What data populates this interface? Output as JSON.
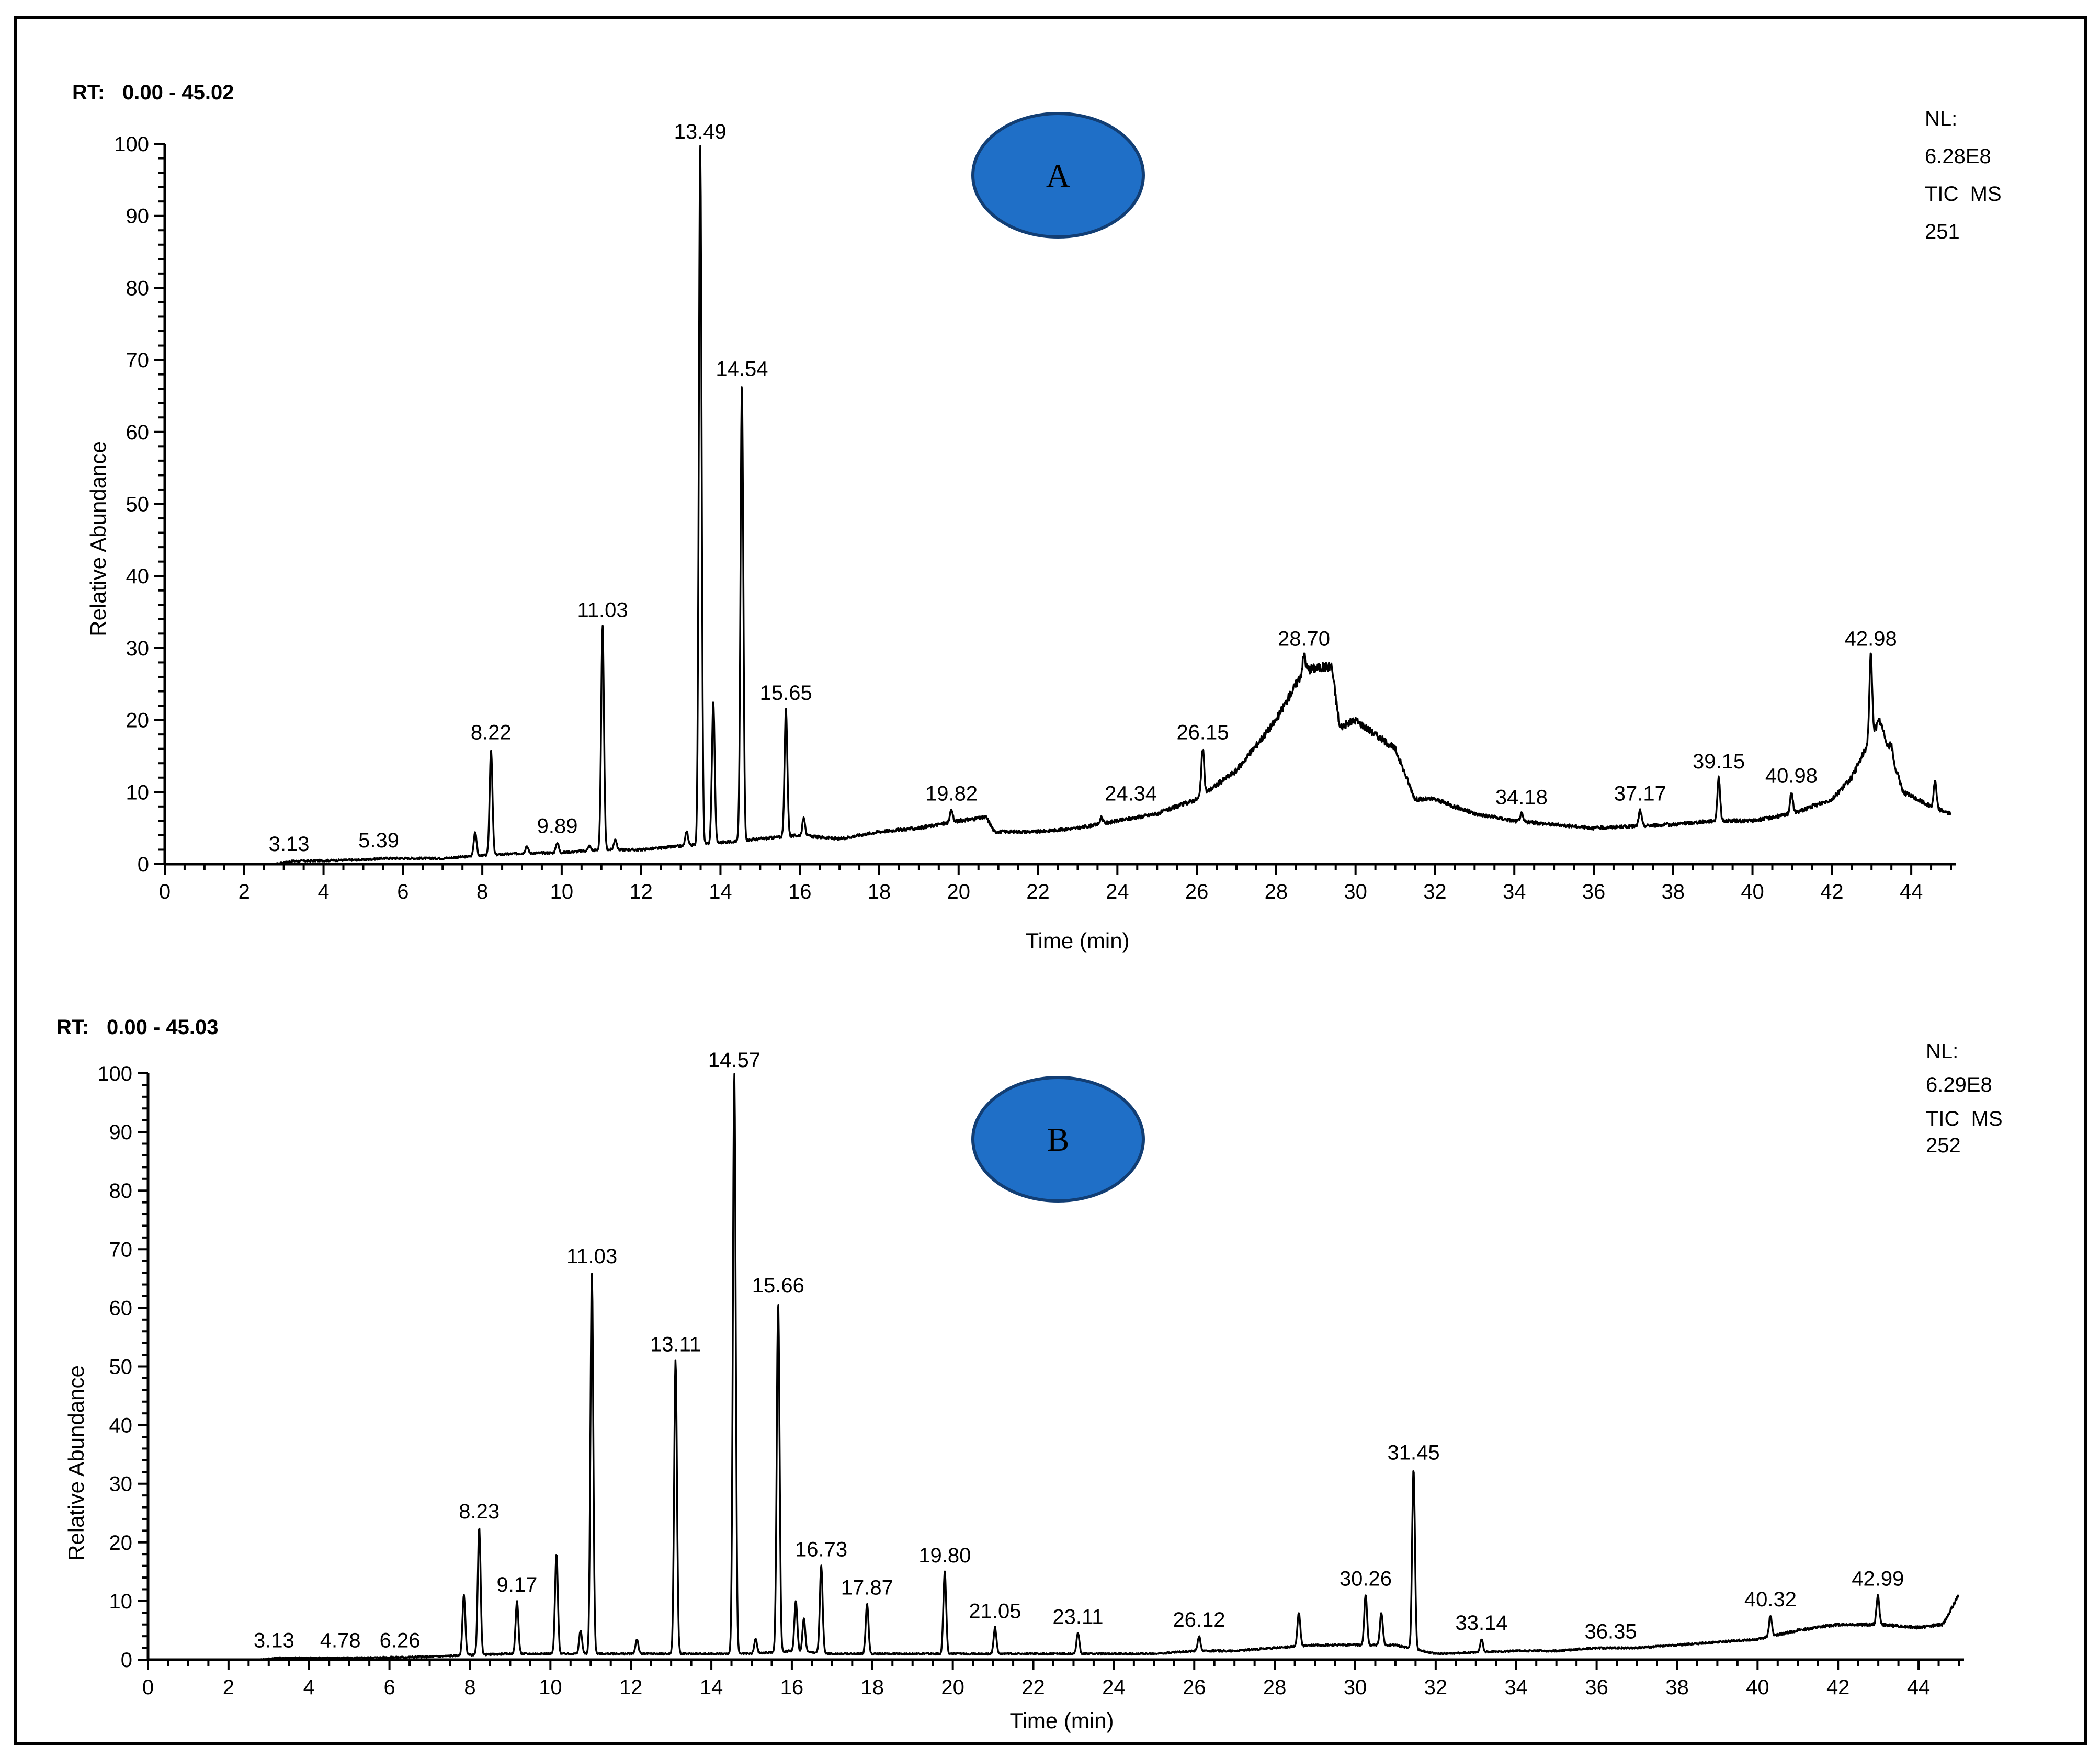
{
  "chart_data": [
    {
      "type": "line",
      "id": "A",
      "badge": "A",
      "rt_prefix": "RT:",
      "rt_range": "0.00 - 45.02",
      "nl_label": "NL:",
      "nl_value": "6.28E8",
      "scan_line": "TIC  MS",
      "scan_id": "251",
      "xlabel": "Time (min)",
      "ylabel": "Relative Abundance",
      "xlim": [
        0,
        45
      ],
      "ylim": [
        0,
        100
      ],
      "x_ticks": [
        "0",
        "2",
        "4",
        "6",
        "8",
        "10",
        "12",
        "14",
        "16",
        "18",
        "20",
        "22",
        "24",
        "26",
        "28",
        "30",
        "32",
        "34",
        "36",
        "38",
        "40",
        "42",
        "44"
      ],
      "y_ticks": [
        "0",
        "10",
        "20",
        "30",
        "40",
        "50",
        "60",
        "70",
        "80",
        "90",
        "100"
      ],
      "peaks": [
        {
          "x": 7.82,
          "y": 4.5
        },
        {
          "x": 8.22,
          "y": 16,
          "label": "8.22"
        },
        {
          "x": 9.12,
          "y": 2.5
        },
        {
          "x": 9.89,
          "y": 3,
          "label": "9.89"
        },
        {
          "x": 10.7,
          "y": 2.5
        },
        {
          "x": 11.03,
          "y": 33,
          "label": "11.03"
        },
        {
          "x": 11.35,
          "y": 3.5
        },
        {
          "x": 13.15,
          "y": 4.5
        },
        {
          "x": 13.49,
          "y": 100,
          "label": "13.49"
        },
        {
          "x": 13.82,
          "y": 22.5
        },
        {
          "x": 14.54,
          "y": 66.5,
          "label": "14.54"
        },
        {
          "x": 15.65,
          "y": 21.5,
          "label": "15.65"
        },
        {
          "x": 16.1,
          "y": 6.5
        },
        {
          "x": 19.82,
          "y": 7.5,
          "label": "19.82"
        },
        {
          "x": 23.6,
          "y": 6.5
        },
        {
          "x": 26.15,
          "y": 16,
          "label": "26.15"
        },
        {
          "x": 28.7,
          "y": 29,
          "label": "28.70"
        },
        {
          "x": 34.18,
          "y": 7,
          "label": "34.18"
        },
        {
          "x": 37.17,
          "y": 7.5,
          "label": "37.17"
        },
        {
          "x": 39.15,
          "y": 12,
          "label": "39.15"
        },
        {
          "x": 40.98,
          "y": 10,
          "label": "40.98"
        },
        {
          "x": 42.98,
          "y": 29,
          "label": "42.98"
        },
        {
          "x": 43.5,
          "y": 16.5
        },
        {
          "x": 44.6,
          "y": 11.5
        }
      ],
      "small_labels": [
        {
          "x": 3.13,
          "y": 0.5,
          "label": "3.13"
        },
        {
          "x": 5.39,
          "y": 1,
          "label": "5.39"
        },
        {
          "x": 24.34,
          "y": 7.5,
          "label": "24.34"
        }
      ],
      "baseline": [
        [
          2.8,
          0
        ],
        [
          3.2,
          0.4
        ],
        [
          5,
          0.6
        ],
        [
          5.5,
          0.8
        ],
        [
          7,
          0.8
        ],
        [
          8,
          1.2
        ],
        [
          9,
          1.5
        ],
        [
          10,
          1.6
        ],
        [
          11,
          2
        ],
        [
          12,
          2
        ],
        [
          13,
          2.5
        ],
        [
          14,
          3
        ],
        [
          15,
          3.5
        ],
        [
          16,
          4
        ],
        [
          17,
          3.5
        ],
        [
          18,
          4.5
        ],
        [
          19,
          5
        ],
        [
          20,
          6
        ],
        [
          20.7,
          6.5
        ],
        [
          20.9,
          4.5
        ],
        [
          22,
          4.5
        ],
        [
          23,
          5
        ],
        [
          24,
          6
        ],
        [
          25,
          7
        ],
        [
          26,
          9
        ],
        [
          27,
          13
        ],
        [
          28,
          20
        ],
        [
          28.7,
          27
        ],
        [
          29.4,
          27.5
        ],
        [
          29.6,
          19
        ],
        [
          30,
          20
        ],
        [
          31,
          16
        ],
        [
          31.5,
          9
        ],
        [
          32,
          9
        ],
        [
          33,
          7
        ],
        [
          34,
          6
        ],
        [
          35,
          5.5
        ],
        [
          36,
          5
        ],
        [
          38,
          5.5
        ],
        [
          39,
          6
        ],
        [
          40,
          6
        ],
        [
          41,
          7
        ],
        [
          42,
          9
        ],
        [
          42.5,
          12
        ],
        [
          43.2,
          20
        ],
        [
          43.8,
          10
        ],
        [
          44.5,
          8
        ],
        [
          45,
          7
        ]
      ]
    },
    {
      "type": "line",
      "id": "B",
      "badge": "B",
      "rt_prefix": "RT:",
      "rt_range": "0.00 - 45.03",
      "nl_label": "NL:",
      "nl_value": "6.29E8",
      "scan_line": "TIC  MS",
      "scan_id": "252",
      "xlabel": "Time (min)",
      "ylabel": "Relative Abundance",
      "xlim": [
        0,
        45
      ],
      "ylim": [
        0,
        100
      ],
      "x_ticks": [
        "0",
        "2",
        "4",
        "6",
        "8",
        "10",
        "12",
        "14",
        "16",
        "18",
        "20",
        "22",
        "24",
        "26",
        "28",
        "30",
        "32",
        "34",
        "36",
        "38",
        "40",
        "42",
        "44"
      ],
      "y_ticks": [
        "0",
        "10",
        "20",
        "30",
        "40",
        "50",
        "60",
        "70",
        "80",
        "90",
        "100"
      ],
      "peaks": [
        {
          "x": 7.85,
          "y": 11
        },
        {
          "x": 8.23,
          "y": 22.5,
          "label": "8.23"
        },
        {
          "x": 9.17,
          "y": 10,
          "label": "9.17"
        },
        {
          "x": 10.15,
          "y": 18
        },
        {
          "x": 10.75,
          "y": 5
        },
        {
          "x": 11.03,
          "y": 66,
          "label": "11.03"
        },
        {
          "x": 12.15,
          "y": 3.5
        },
        {
          "x": 13.11,
          "y": 51,
          "label": "13.11"
        },
        {
          "x": 14.57,
          "y": 100,
          "label": "14.57"
        },
        {
          "x": 15.1,
          "y": 3.5
        },
        {
          "x": 15.66,
          "y": 61,
          "label": "15.66"
        },
        {
          "x": 16.1,
          "y": 10
        },
        {
          "x": 16.3,
          "y": 7
        },
        {
          "x": 16.73,
          "y": 16,
          "label": "16.73"
        },
        {
          "x": 17.87,
          "y": 9.5,
          "label": "17.87"
        },
        {
          "x": 19.8,
          "y": 15,
          "label": "19.80"
        },
        {
          "x": 21.05,
          "y": 5.5,
          "label": "21.05"
        },
        {
          "x": 23.11,
          "y": 4.5,
          "label": "23.11"
        },
        {
          "x": 26.12,
          "y": 4,
          "label": "26.12"
        },
        {
          "x": 28.6,
          "y": 8
        },
        {
          "x": 30.26,
          "y": 11,
          "label": "30.26"
        },
        {
          "x": 30.65,
          "y": 8
        },
        {
          "x": 31.45,
          "y": 32.5,
          "label": "31.45"
        },
        {
          "x": 33.14,
          "y": 3.5,
          "label": "33.14"
        },
        {
          "x": 40.32,
          "y": 7.5,
          "label": "40.32"
        },
        {
          "x": 42.99,
          "y": 11,
          "label": "42.99"
        }
      ],
      "small_labels": [
        {
          "x": 3.13,
          "y": 0.5,
          "label": "3.13"
        },
        {
          "x": 4.78,
          "y": 0.5,
          "label": "4.78"
        },
        {
          "x": 6.26,
          "y": 0.5,
          "label": "6.26"
        },
        {
          "x": 36.35,
          "y": 2,
          "label": "36.35"
        }
      ],
      "baseline": [
        [
          2.8,
          0
        ],
        [
          3.2,
          0.3
        ],
        [
          5,
          0.3
        ],
        [
          7,
          0.5
        ],
        [
          8,
          0.8
        ],
        [
          9,
          1
        ],
        [
          10,
          1
        ],
        [
          12,
          1
        ],
        [
          13,
          1
        ],
        [
          14,
          1
        ],
        [
          15,
          1
        ],
        [
          16,
          1.5
        ],
        [
          17,
          1
        ],
        [
          18,
          1
        ],
        [
          19,
          1
        ],
        [
          20,
          1
        ],
        [
          21,
          1
        ],
        [
          22,
          1
        ],
        [
          24,
          1
        ],
        [
          25,
          1
        ],
        [
          26,
          1.5
        ],
        [
          27,
          1.5
        ],
        [
          28,
          2
        ],
        [
          29,
          2.5
        ],
        [
          30,
          2.5
        ],
        [
          31,
          2.5
        ],
        [
          32,
          1
        ],
        [
          34,
          1.5
        ],
        [
          35,
          1.5
        ],
        [
          36,
          2
        ],
        [
          37,
          2
        ],
        [
          38,
          2.5
        ],
        [
          39,
          3
        ],
        [
          40,
          3.5
        ],
        [
          41,
          5
        ],
        [
          42,
          6
        ],
        [
          43,
          6
        ],
        [
          44,
          5.5
        ],
        [
          44.6,
          6
        ],
        [
          45,
          11
        ]
      ]
    }
  ]
}
